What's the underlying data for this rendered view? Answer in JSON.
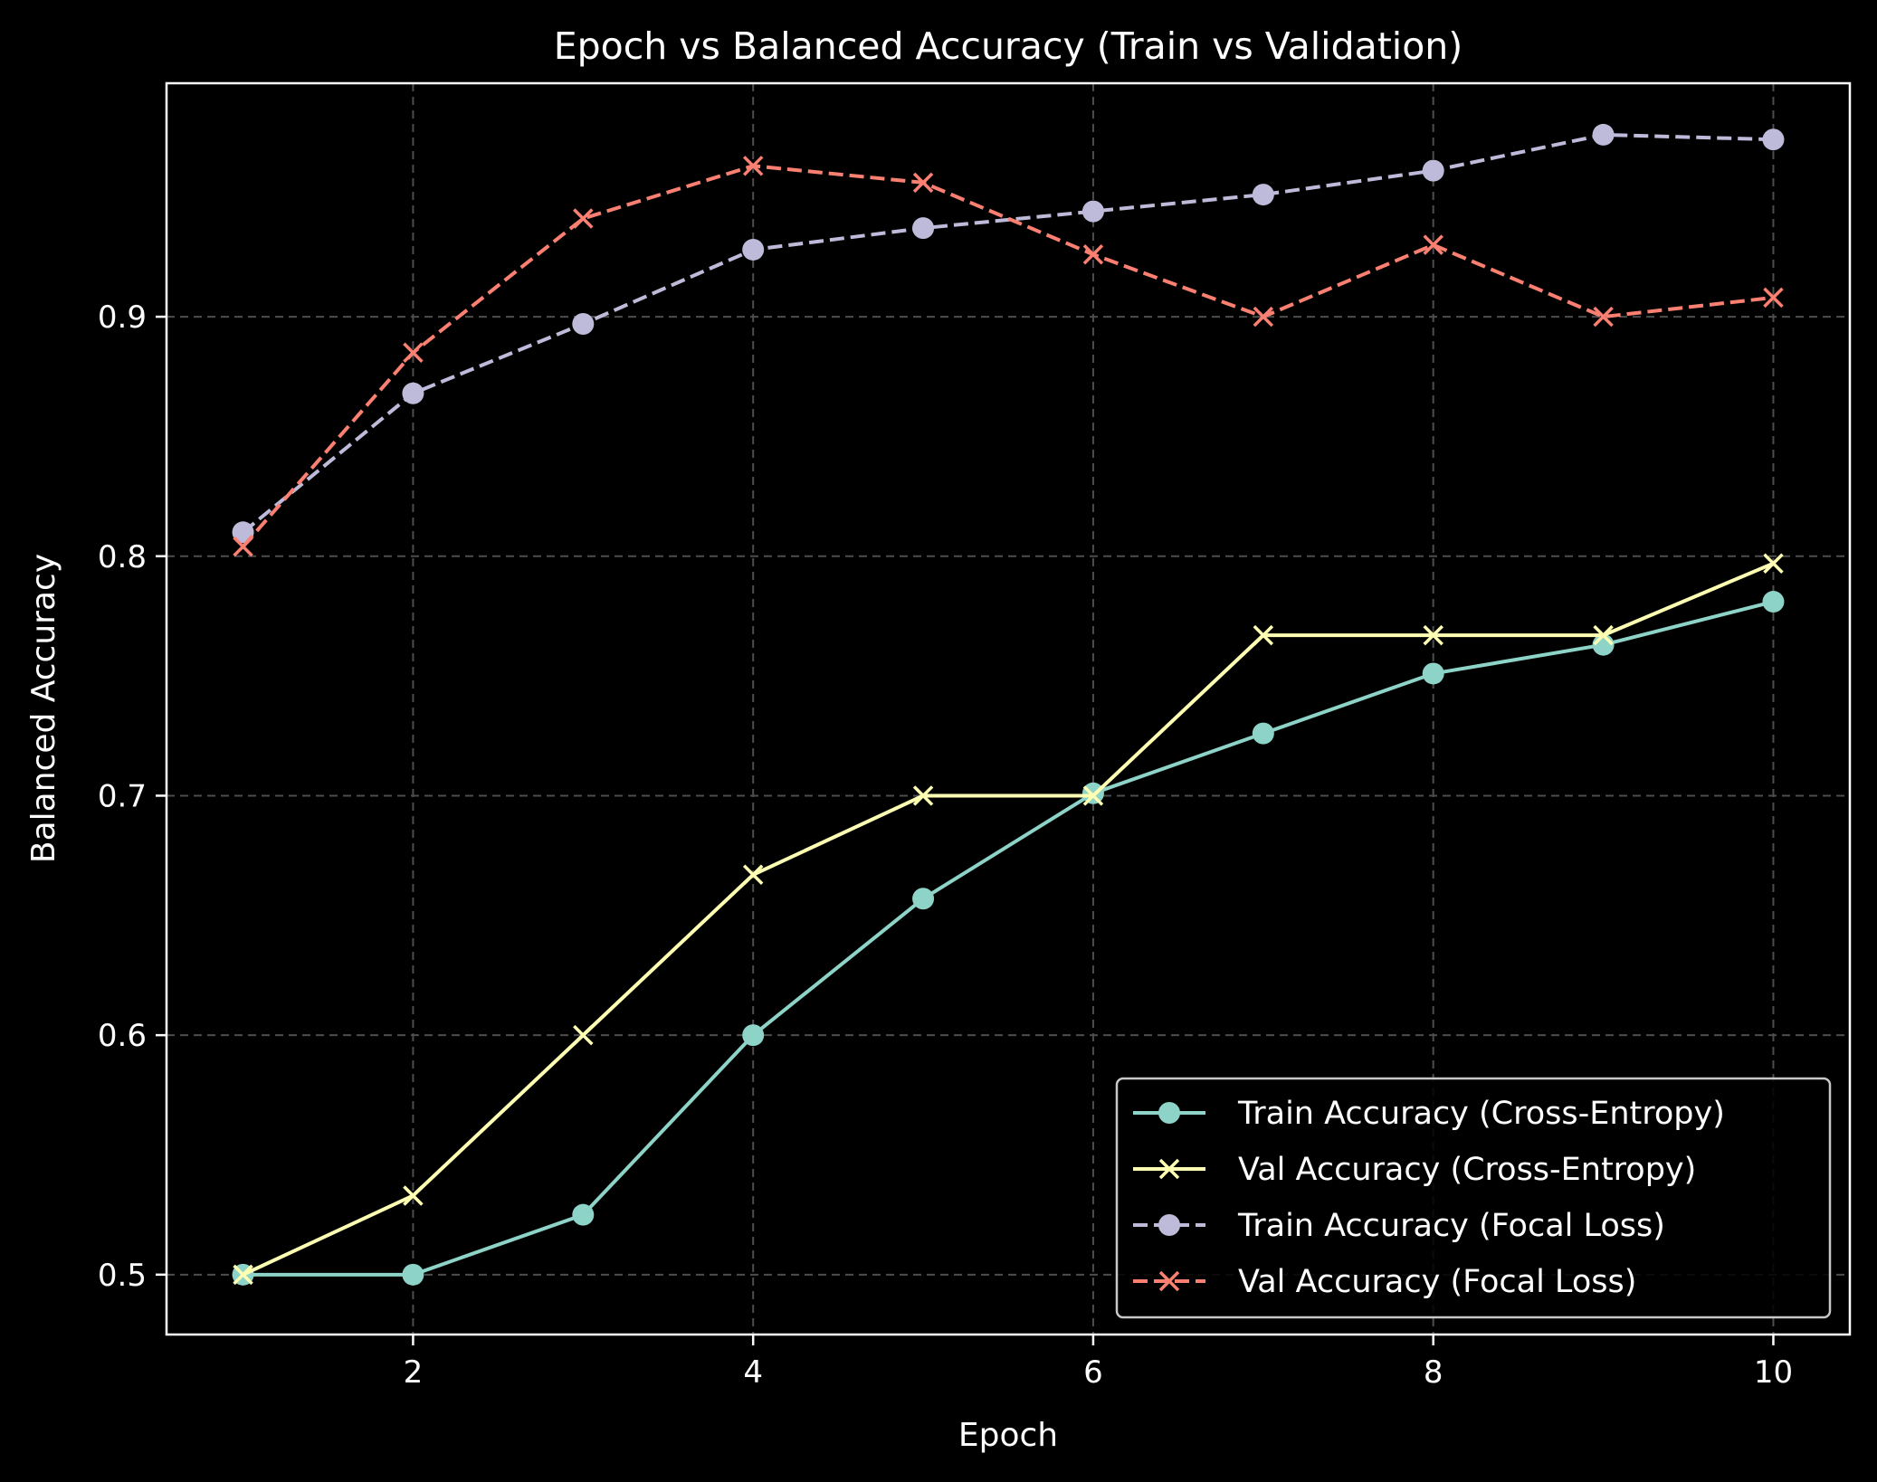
{
  "chart_data": {
    "type": "line",
    "title": "Epoch vs Balanced Accuracy (Train vs Validation)",
    "xlabel": "Epoch",
    "ylabel": "Balanced Accuracy",
    "xlim": [
      0.55,
      10.45
    ],
    "ylim": [
      0.475,
      0.9975
    ],
    "xticks": [
      2,
      4,
      6,
      8,
      10
    ],
    "yticks": [
      0.5,
      0.6,
      0.7,
      0.8,
      0.9
    ],
    "xtick_labels": [
      "2",
      "4",
      "6",
      "8",
      "10"
    ],
    "ytick_labels": [
      "0.5",
      "0.6",
      "0.7",
      "0.8",
      "0.9"
    ],
    "grid": true,
    "legend_position": "lower-right",
    "background": "#000000",
    "x": [
      1,
      2,
      3,
      4,
      5,
      6,
      7,
      8,
      9,
      10
    ],
    "series": [
      {
        "name": "Train Accuracy (Cross-Entropy)",
        "values": [
          0.5,
          0.5,
          0.525,
          0.6,
          0.657,
          0.701,
          0.726,
          0.751,
          0.763,
          0.781
        ],
        "color": "#8dd3c7",
        "line_style": "solid",
        "marker": "circle"
      },
      {
        "name": "Val Accuracy (Cross-Entropy)",
        "values": [
          0.5,
          0.533,
          0.6,
          0.667,
          0.7,
          0.7,
          0.767,
          0.767,
          0.767,
          0.797
        ],
        "color": "#ffffb3",
        "line_style": "solid",
        "marker": "x"
      },
      {
        "name": "Train Accuracy (Focal Loss)",
        "values": [
          0.81,
          0.868,
          0.897,
          0.928,
          0.937,
          0.944,
          0.951,
          0.961,
          0.976,
          0.974
        ],
        "color": "#bebada",
        "line_style": "dashed",
        "marker": "circle"
      },
      {
        "name": "Val Accuracy (Focal Loss)",
        "values": [
          0.804,
          0.885,
          0.941,
          0.963,
          0.956,
          0.926,
          0.9,
          0.93,
          0.9,
          0.908
        ],
        "color": "#fb8072",
        "line_style": "dashed",
        "marker": "x"
      }
    ]
  }
}
